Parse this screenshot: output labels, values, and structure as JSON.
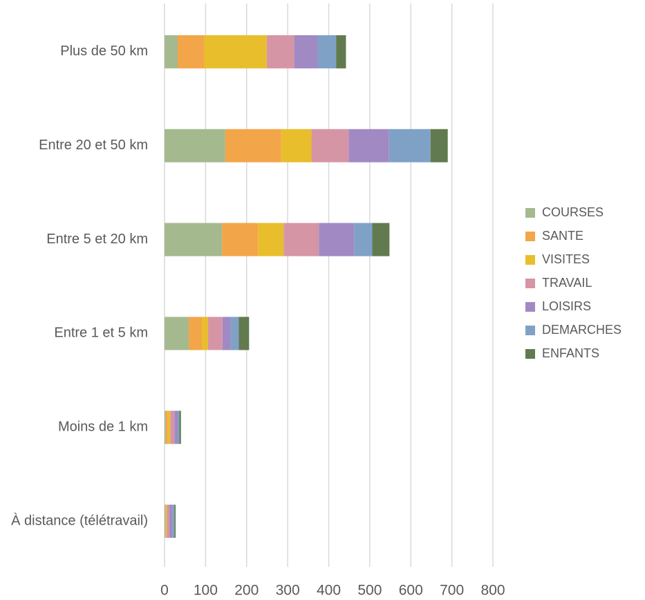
{
  "chart_data": {
    "type": "stacked-barh",
    "categories": [
      "Plus de 50 km",
      "Entre 20 et 50 km",
      "Entre 5 et 20 km",
      "Entre 1 et 5 km",
      "Moins de 1 km",
      "À distance (télétravail)"
    ],
    "series": [
      {
        "name": "COURSES",
        "color": "#a5b98f",
        "values": [
          32,
          148,
          140,
          59,
          3,
          2
        ]
      },
      {
        "name": "SANTE",
        "color": "#f3a54a",
        "values": [
          64,
          136,
          88,
          32,
          5,
          2
        ]
      },
      {
        "name": "VISITES",
        "color": "#e8be2c",
        "values": [
          153,
          74,
          62,
          15,
          6,
          2
        ]
      },
      {
        "name": "TRAVAIL",
        "color": "#d695a5",
        "values": [
          67,
          91,
          86,
          35,
          10,
          6
        ]
      },
      {
        "name": "LOISIRS",
        "color": "#a189c4",
        "values": [
          57,
          98,
          86,
          20,
          8,
          7
        ]
      },
      {
        "name": "DEMARCHES",
        "color": "#7fa1c6",
        "values": [
          45,
          101,
          44,
          20,
          4,
          5
        ]
      },
      {
        "name": "ENFANTS",
        "color": "#627a4f",
        "values": [
          24,
          42,
          42,
          25,
          4,
          3
        ]
      }
    ],
    "xlim": [
      0,
      800
    ],
    "xticks": [
      0,
      100,
      200,
      300,
      400,
      500,
      600,
      700,
      800
    ],
    "grid": true,
    "legend": "right"
  }
}
